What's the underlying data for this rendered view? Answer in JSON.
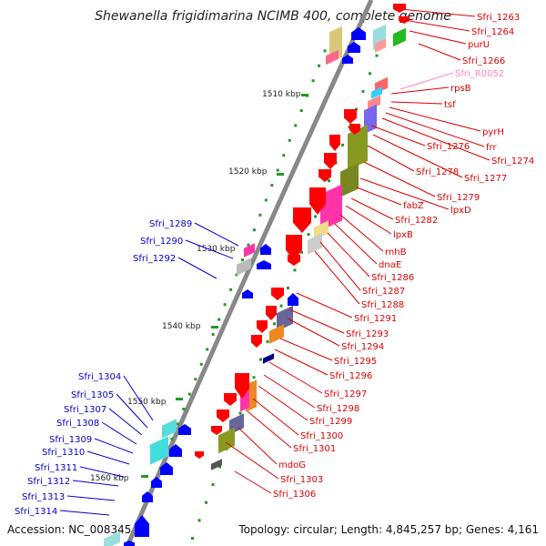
{
  "title": "Shewanella frigidimarina NCIMB 400, complete genome",
  "accession": "Accession: NC_008345",
  "topology": "Topology: circular; Length: 4,845,257 bp; Genes: 4,161",
  "scale_labels": [
    "1510 kbp",
    "1520 kbp",
    "1530 kbp",
    "1540 kbp",
    "1550 kbp",
    "1560 kbp"
  ],
  "right_labels": [
    {
      "text": "Sfri_1263",
      "color": "#dd0000"
    },
    {
      "text": "Sfri_1264",
      "color": "#dd0000"
    },
    {
      "text": "purU",
      "color": "#dd0000"
    },
    {
      "text": "Sfri_1266",
      "color": "#dd0000"
    },
    {
      "text": "Sfri_R0052",
      "color": "#ff88bb"
    },
    {
      "text": "rpsB",
      "color": "#dd0000"
    },
    {
      "text": "tsf",
      "color": "#dd0000"
    },
    {
      "text": "pyrH",
      "color": "#dd0000"
    },
    {
      "text": "frr",
      "color": "#dd0000"
    },
    {
      "text": "Sfri_1274",
      "color": "#dd0000"
    },
    {
      "text": "Sfri_1276",
      "color": "#dd0000"
    },
    {
      "text": "Sfri_1277",
      "color": "#dd0000"
    },
    {
      "text": "Sfri_1278",
      "color": "#dd0000"
    },
    {
      "text": "Sfri_1279",
      "color": "#dd0000"
    },
    {
      "text": "lpxD",
      "color": "#dd0000"
    },
    {
      "text": "fabZ",
      "color": "#dd0000"
    },
    {
      "text": "Sfri_1282",
      "color": "#dd0000"
    },
    {
      "text": "lpxB",
      "color": "#dd0000"
    },
    {
      "text": "rnhB",
      "color": "#dd0000"
    },
    {
      "text": "dnaE",
      "color": "#dd0000"
    },
    {
      "text": "Sfri_1286",
      "color": "#dd0000"
    },
    {
      "text": "Sfri_1287",
      "color": "#dd0000"
    },
    {
      "text": "Sfri_1288",
      "color": "#dd0000"
    },
    {
      "text": "Sfri_1291",
      "color": "#dd0000"
    },
    {
      "text": "Sfri_1293",
      "color": "#dd0000"
    },
    {
      "text": "Sfri_1294",
      "color": "#dd0000"
    },
    {
      "text": "Sfri_1295",
      "color": "#dd0000"
    },
    {
      "text": "Sfri_1296",
      "color": "#dd0000"
    },
    {
      "text": "Sfri_1297",
      "color": "#dd0000"
    },
    {
      "text": "Sfri_1298",
      "color": "#dd0000"
    },
    {
      "text": "Sfri_1299",
      "color": "#dd0000"
    },
    {
      "text": "Sfri_1300",
      "color": "#dd0000"
    },
    {
      "text": "Sfri_1301",
      "color": "#dd0000"
    },
    {
      "text": "mdoG",
      "color": "#dd0000"
    },
    {
      "text": "Sfri_1303",
      "color": "#dd0000"
    },
    {
      "text": "Sfri_1306",
      "color": "#dd0000"
    }
  ],
  "left_labels": [
    {
      "text": "Sfri_1289",
      "color": "#0000cc"
    },
    {
      "text": "Sfri_1290",
      "color": "#0000cc"
    },
    {
      "text": "Sfri_1292",
      "color": "#0000cc"
    },
    {
      "text": "Sfri_1304",
      "color": "#0000cc"
    },
    {
      "text": "Sfri_1305",
      "color": "#0000cc"
    },
    {
      "text": "Sfri_1307",
      "color": "#0000cc"
    },
    {
      "text": "Sfri_1308",
      "color": "#0000cc"
    },
    {
      "text": "Sfri_1309",
      "color": "#0000cc"
    },
    {
      "text": "Sfri_1310",
      "color": "#0000cc"
    },
    {
      "text": "Sfri_1311",
      "color": "#0000cc"
    },
    {
      "text": "Sfri_1312",
      "color": "#0000cc"
    },
    {
      "text": "Sfri_1313",
      "color": "#0000cc"
    },
    {
      "text": "Sfri_1314",
      "color": "#0000cc"
    }
  ],
  "colors": {
    "backbone": "#888888",
    "forward_cds": "#ff0000",
    "reverse_cds": "#0000ff",
    "tick": "#229922"
  }
}
